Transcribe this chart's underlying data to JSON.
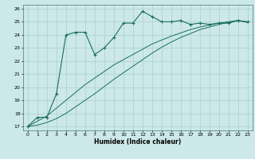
{
  "title": "",
  "xlabel": "Humidex (Indice chaleur)",
  "ylabel": "",
  "bg_color": "#cce8e8",
  "grid_color": "#aad0d0",
  "line_color": "#1a6e60",
  "xlim": [
    -0.5,
    23.5
  ],
  "ylim": [
    16.7,
    26.3
  ],
  "xticks": [
    0,
    1,
    2,
    3,
    4,
    5,
    6,
    7,
    8,
    9,
    10,
    11,
    12,
    13,
    14,
    15,
    16,
    17,
    18,
    19,
    20,
    21,
    22,
    23
  ],
  "yticks": [
    17,
    18,
    19,
    20,
    21,
    22,
    23,
    24,
    25,
    26
  ],
  "series1_x": [
    0,
    1,
    2,
    3,
    4,
    5,
    6,
    7,
    8,
    9,
    10,
    11,
    12,
    13,
    14,
    15,
    16,
    17,
    18,
    19,
    20,
    21,
    22,
    23
  ],
  "series1_y": [
    17.0,
    17.7,
    17.7,
    19.5,
    24.0,
    24.2,
    24.2,
    22.5,
    23.0,
    23.8,
    24.9,
    24.9,
    25.8,
    25.4,
    25.0,
    25.0,
    25.1,
    24.8,
    24.9,
    24.8,
    24.9,
    24.9,
    25.1,
    25.0
  ],
  "series2_x": [
    0,
    1,
    2,
    3,
    4,
    5,
    6,
    7,
    8,
    9,
    10,
    11,
    12,
    13,
    14,
    15,
    16,
    17,
    18,
    19,
    20,
    21,
    22,
    23
  ],
  "series2_y": [
    17.0,
    17.4,
    17.8,
    18.4,
    19.0,
    19.6,
    20.2,
    20.7,
    21.2,
    21.7,
    22.1,
    22.5,
    22.9,
    23.3,
    23.6,
    23.9,
    24.15,
    24.4,
    24.6,
    24.75,
    24.9,
    25.0,
    25.1,
    24.95
  ],
  "series3_x": [
    0,
    1,
    2,
    3,
    4,
    5,
    6,
    7,
    8,
    9,
    10,
    11,
    12,
    13,
    14,
    15,
    16,
    17,
    18,
    19,
    20,
    21,
    22,
    23
  ],
  "series3_y": [
    17.0,
    17.1,
    17.3,
    17.6,
    18.0,
    18.5,
    19.0,
    19.5,
    20.05,
    20.6,
    21.1,
    21.6,
    22.1,
    22.6,
    23.05,
    23.45,
    23.8,
    24.1,
    24.4,
    24.6,
    24.8,
    24.95,
    25.1,
    24.95
  ]
}
